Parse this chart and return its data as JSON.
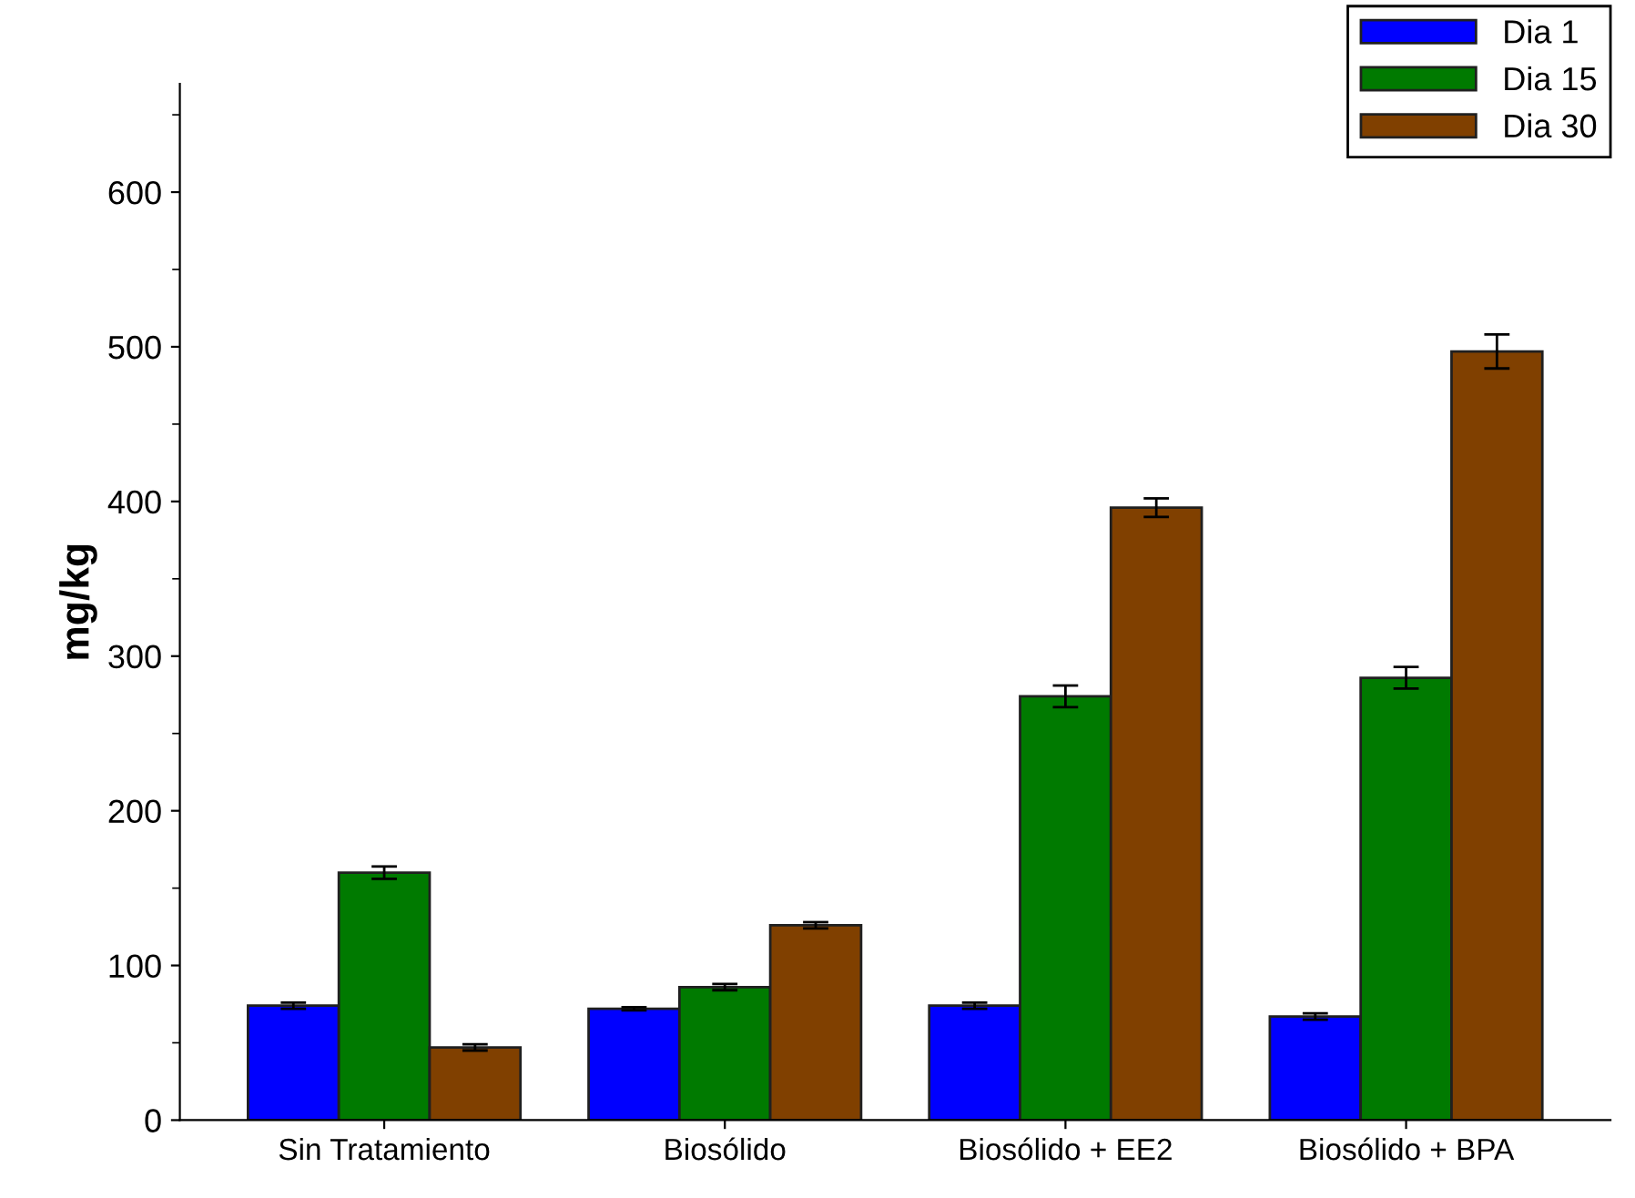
{
  "chart_data": {
    "type": "bar",
    "ylabel": "mg/kg",
    "categories": [
      "Sin Tratamiento",
      "Biosólido",
      "Biosólido + EE2",
      "Biosólido + BPA"
    ],
    "series": [
      {
        "name": "Dia 1",
        "color": "#0000ff",
        "values": [
          74,
          72,
          74,
          67
        ],
        "errors": [
          2,
          1,
          2,
          2
        ]
      },
      {
        "name": "Dia 15",
        "color": "#007a00",
        "values": [
          160,
          86,
          274,
          286
        ],
        "errors": [
          4,
          2,
          7,
          7
        ]
      },
      {
        "name": "Dia 30",
        "color": "#804000",
        "values": [
          47,
          126,
          396,
          497
        ],
        "errors": [
          2,
          2,
          6,
          11
        ]
      }
    ],
    "ylim": [
      0,
      670
    ],
    "yticks": [
      0,
      100,
      200,
      300,
      400,
      500,
      600
    ],
    "grid": false,
    "legend": "top right"
  }
}
